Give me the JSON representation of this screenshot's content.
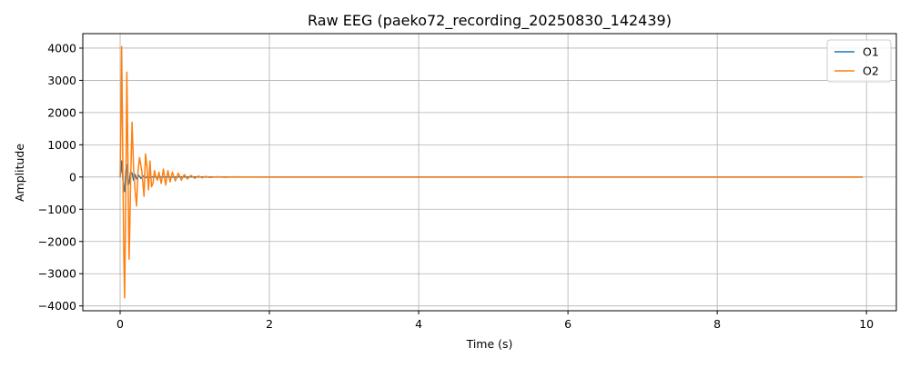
{
  "chart_data": {
    "type": "line",
    "title": "Raw EEG (paeko72_recording_20250830_142439)",
    "xlabel": "Time (s)",
    "ylabel": "Amplitude",
    "xlim": [
      -0.5,
      10.4
    ],
    "ylim": [
      -4150,
      4450
    ],
    "x_ticks": [
      0,
      2,
      4,
      6,
      8,
      10
    ],
    "x_tick_labels": [
      "0",
      "2",
      "4",
      "6",
      "8",
      "10"
    ],
    "y_ticks": [
      -4000,
      -3000,
      -2000,
      -1000,
      0,
      1000,
      2000,
      3000,
      4000
    ],
    "y_tick_labels": [
      "−4000",
      "−3000",
      "−2000",
      "−1000",
      "0",
      "1000",
      "2000",
      "3000",
      "4000"
    ],
    "grid": true,
    "legend_position": "top-right",
    "series": [
      {
        "name": "O1",
        "color": "#1f77b4",
        "x": [
          0,
          0.01,
          0.02,
          0.03,
          0.045,
          0.06,
          0.075,
          0.09,
          0.105,
          0.12,
          0.14,
          0.16,
          0.18,
          0.2,
          0.22,
          0.25,
          0.28,
          0.31,
          0.34,
          0.37,
          0.4,
          0.45,
          0.5,
          0.6,
          0.7,
          0.8,
          1.0,
          1.5,
          2.0,
          3.0,
          4.0,
          5.0,
          6.0,
          7.0,
          8.0,
          9.0,
          9.95
        ],
        "y": [
          0,
          200,
          500,
          150,
          -300,
          -450,
          200,
          380,
          -250,
          -200,
          150,
          120,
          -100,
          80,
          -60,
          50,
          -40,
          30,
          -20,
          15,
          -10,
          8,
          -5,
          4,
          -3,
          2,
          1,
          0,
          0,
          0,
          0,
          0,
          0,
          0,
          0,
          0,
          0
        ]
      },
      {
        "name": "O2",
        "color": "#ff7f0e",
        "x": [
          0,
          0.01,
          0.02,
          0.03,
          0.04,
          0.05,
          0.06,
          0.07,
          0.08,
          0.09,
          0.1,
          0.11,
          0.12,
          0.13,
          0.14,
          0.16,
          0.18,
          0.2,
          0.22,
          0.24,
          0.26,
          0.29,
          0.32,
          0.34,
          0.36,
          0.38,
          0.4,
          0.42,
          0.44,
          0.46,
          0.48,
          0.5,
          0.52,
          0.55,
          0.58,
          0.61,
          0.64,
          0.67,
          0.7,
          0.74,
          0.78,
          0.82,
          0.86,
          0.9,
          0.95,
          1.0,
          1.05,
          1.1,
          1.15,
          1.2,
          1.3,
          1.4,
          1.5,
          1.7,
          2.0,
          3.0,
          4.0,
          5.0,
          6.0,
          7.0,
          8.0,
          9.0,
          9.95
        ],
        "y": [
          0,
          1500,
          4050,
          2000,
          -500,
          -2500,
          -3750,
          -1800,
          500,
          3250,
          1500,
          -800,
          -2550,
          -1500,
          -200,
          1700,
          300,
          -400,
          -900,
          200,
          600,
          200,
          -600,
          720,
          300,
          -400,
          500,
          -300,
          -200,
          200,
          0,
          -100,
          150,
          -200,
          250,
          -250,
          200,
          -150,
          150,
          -120,
          120,
          -100,
          80,
          -60,
          50,
          -40,
          30,
          -25,
          20,
          -15,
          10,
          -8,
          5,
          3,
          0,
          0,
          0,
          0,
          0,
          0,
          0,
          0,
          0
        ]
      }
    ]
  }
}
